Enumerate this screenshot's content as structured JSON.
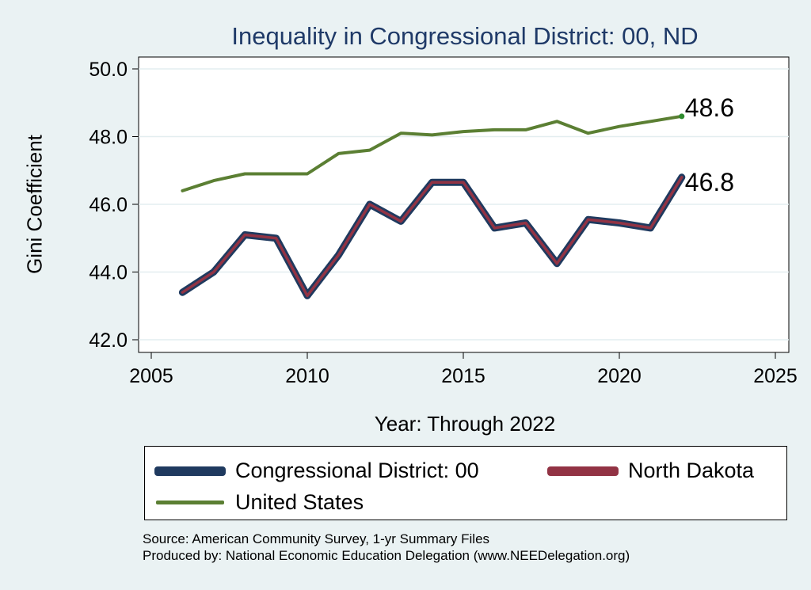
{
  "chart_data": {
    "type": "line",
    "title": "Inequality in Congressional District:  00, ND",
    "xlabel": "Year: Through 2022",
    "ylabel": "Gini Coefficient",
    "xlim": [
      2005,
      2025
    ],
    "ylim": [
      42,
      50
    ],
    "x_ticks": [
      2005,
      2010,
      2015,
      2020,
      2025
    ],
    "y_ticks": [
      42,
      44,
      46,
      48,
      50
    ],
    "x_tick_labels": [
      "2005",
      "2010",
      "2015",
      "2020",
      "2025"
    ],
    "y_tick_labels": [
      "42.0",
      "44.0",
      "46.0",
      "48.0",
      "50.0"
    ],
    "grid": true,
    "x": [
      2006,
      2007,
      2008,
      2009,
      2010,
      2011,
      2012,
      2013,
      2014,
      2015,
      2016,
      2017,
      2018,
      2019,
      2020,
      2021,
      2022
    ],
    "series": [
      {
        "name": "Congressional District:  00",
        "color": "#1f3a5f",
        "values": [
          43.4,
          44.0,
          45.1,
          45.0,
          43.3,
          44.5,
          46.0,
          45.5,
          46.65,
          46.65,
          45.3,
          45.45,
          44.25,
          45.55,
          45.45,
          45.3,
          46.8
        ]
      },
      {
        "name": "North Dakota",
        "color": "#923344",
        "values": [
          43.4,
          44.0,
          45.1,
          45.0,
          43.3,
          44.5,
          46.0,
          45.5,
          46.65,
          46.65,
          45.3,
          45.45,
          44.25,
          45.55,
          45.45,
          45.3,
          46.8
        ]
      },
      {
        "name": "United States",
        "color": "#5b7f33",
        "values": [
          46.4,
          46.7,
          46.9,
          46.9,
          46.9,
          47.5,
          47.6,
          48.1,
          48.05,
          48.15,
          48.2,
          48.2,
          48.45,
          48.1,
          48.3,
          48.45,
          48.6
        ]
      }
    ],
    "annotations": [
      {
        "text": "48.6",
        "x": 2022,
        "y": 48.6
      },
      {
        "text": "46.8",
        "x": 2022,
        "y": 46.8
      }
    ],
    "legend": {
      "position": "bottom",
      "labels": [
        "Congressional District:  00",
        "North Dakota",
        "United States"
      ]
    }
  },
  "source": {
    "line1": "Source: American Community Survey, 1-yr Summary Files",
    "line2": "Produced by: National Economic Education Delegation (www.NEEDelegation.org)"
  }
}
